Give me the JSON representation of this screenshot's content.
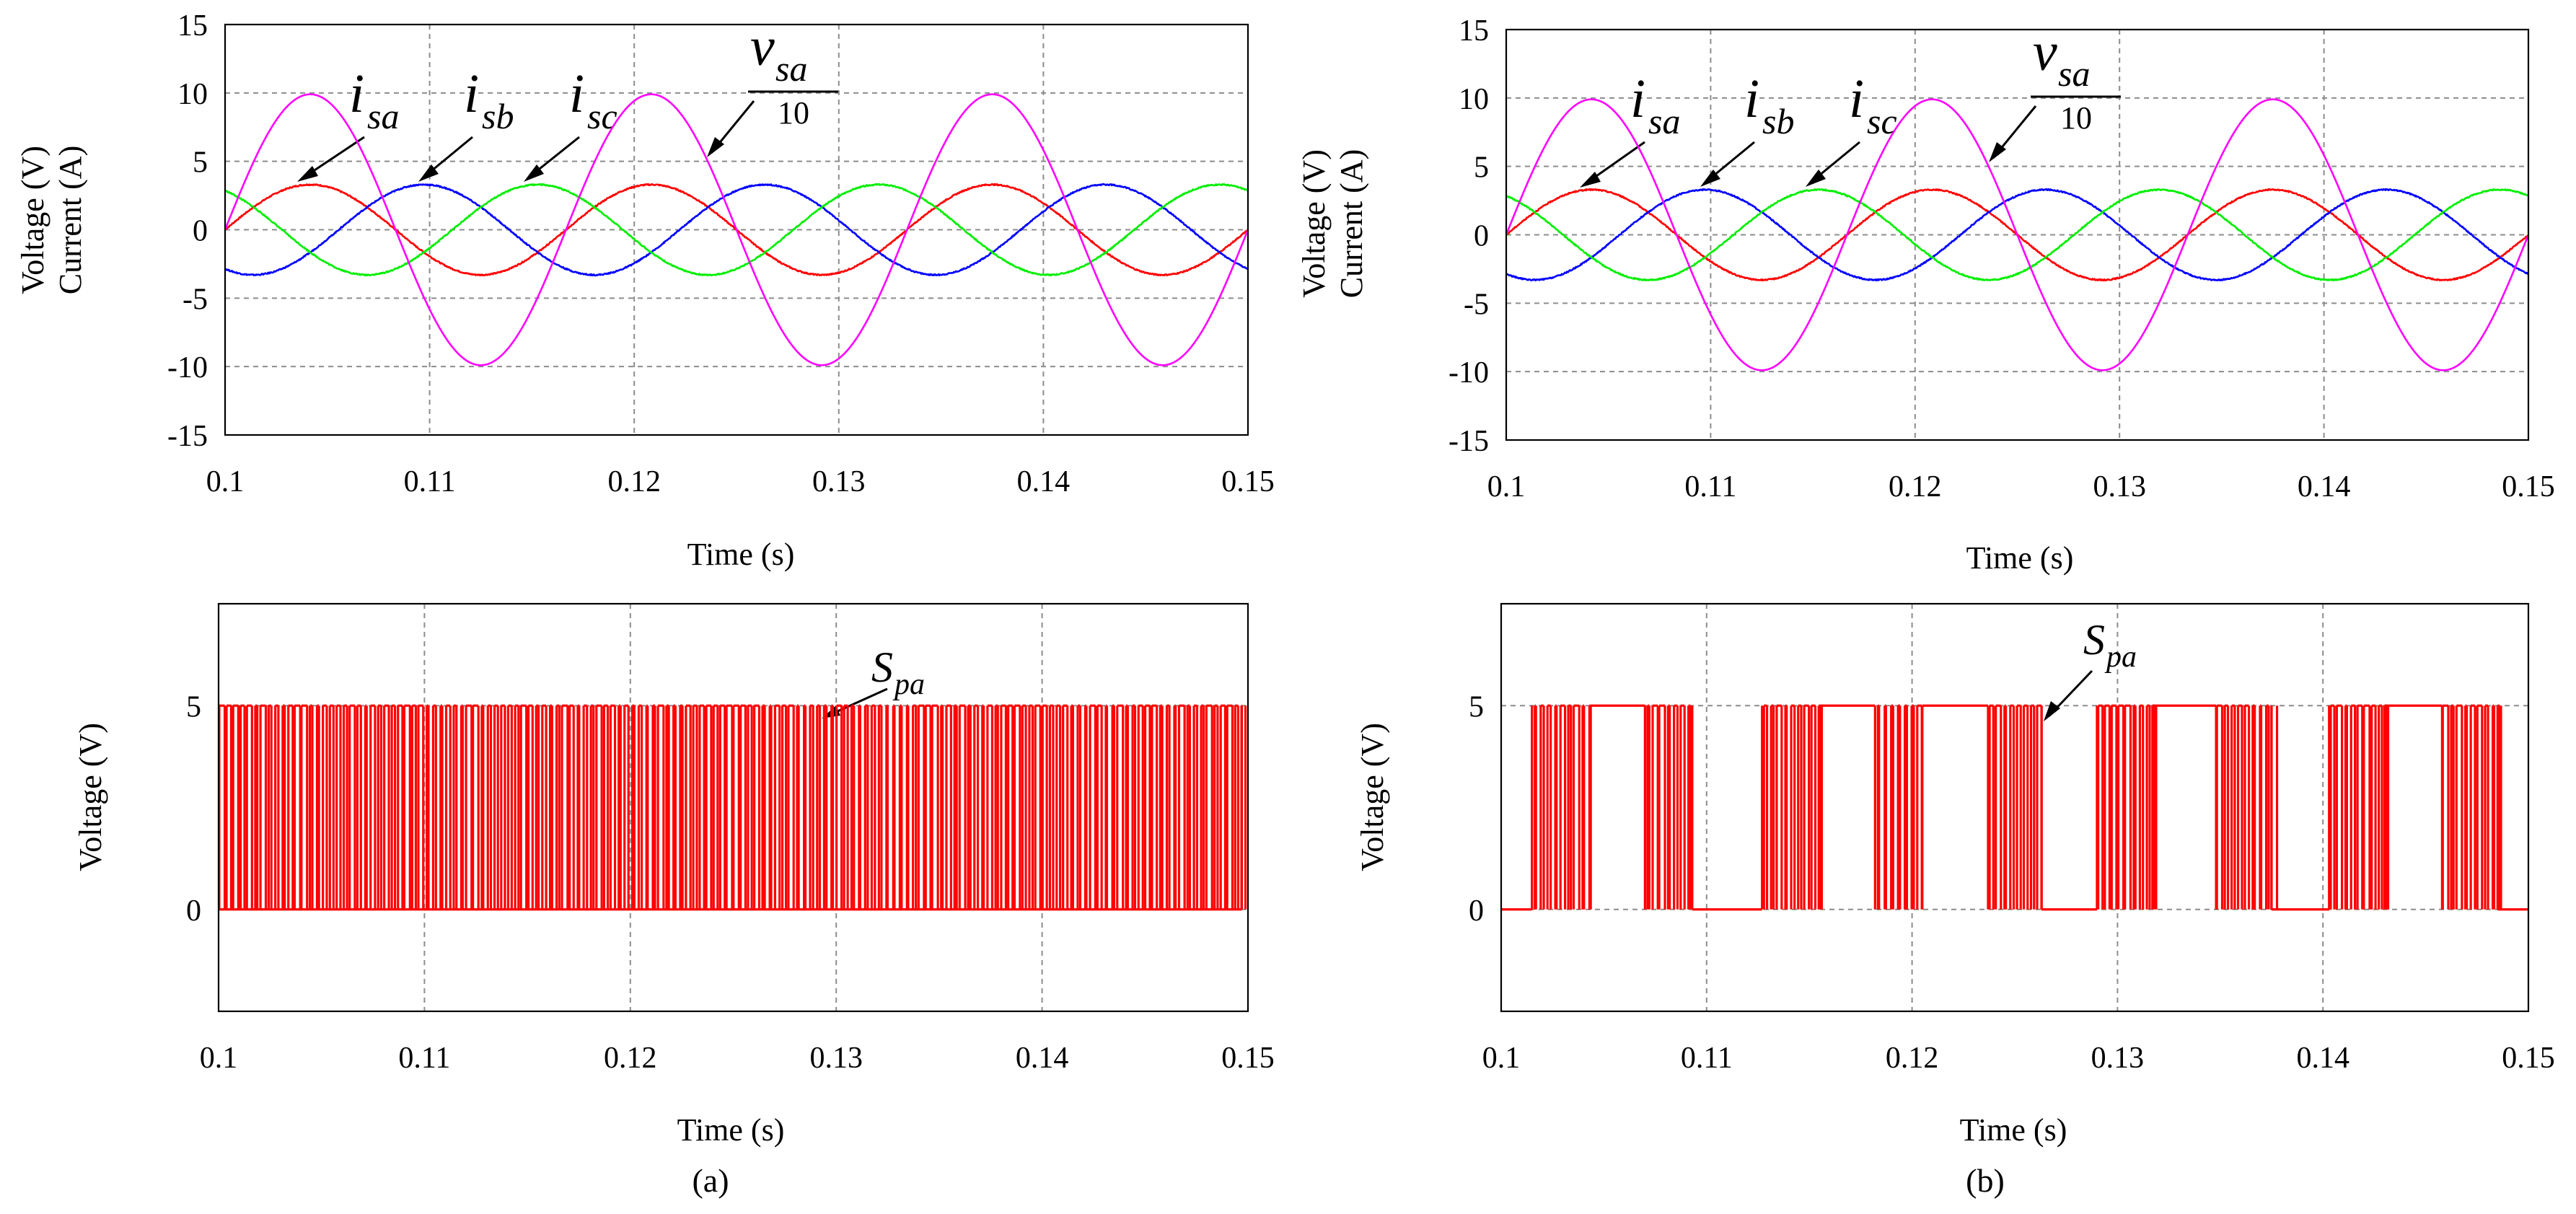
{
  "colors": {
    "isa": "#ff0000",
    "isb": "#0000ff",
    "isc": "#00ee00",
    "vsa": "#ff00ff",
    "pwm": "#ff0000"
  },
  "panels": [
    {
      "label": "(a)"
    },
    {
      "label": "(b)"
    }
  ],
  "annotations": {
    "isa": {
      "main": "i",
      "sub": "sa"
    },
    "isb": {
      "main": "i",
      "sub": "sb"
    },
    "isc": {
      "main": "i",
      "sub": "sc"
    },
    "vsa": {
      "main": "v",
      "sub": "sa",
      "den": "10"
    },
    "spa": {
      "main": "S",
      "sub": "pa"
    }
  },
  "chart_data": [
    {
      "id": "a-top",
      "type": "line",
      "xlabel": "Time (s)",
      "ylabel_lines": [
        "Voltage (V)",
        "Current (A)"
      ],
      "xlim": [
        0.1,
        0.15
      ],
      "ylim": [
        -15,
        15
      ],
      "xticks": [
        0.1,
        0.11,
        0.12,
        0.13,
        0.14,
        0.15
      ],
      "xtick_labels": [
        "0.1",
        "0.11",
        "0.12",
        "0.13",
        "0.14",
        "0.15"
      ],
      "yticks": [
        -15,
        -10,
        -5,
        0,
        5,
        10,
        15
      ],
      "ytick_labels": [
        "-15",
        "-10",
        "-5",
        "0",
        "5",
        "10",
        "15"
      ],
      "grid": true,
      "series": [
        {
          "key": "isa",
          "amplitude": 3.3,
          "frequency_hz": 60,
          "phase_deg": 0,
          "peak_time": 0.1042,
          "zero_up_time": 0.1
        },
        {
          "key": "isb",
          "amplitude": 3.3,
          "frequency_hz": 60,
          "phase_deg": -120,
          "peak_time": 0.1097
        },
        {
          "key": "isc",
          "amplitude": 3.3,
          "frequency_hz": 60,
          "phase_deg": 120,
          "peak_time": 0.1153
        },
        {
          "key": "vsa",
          "amplitude": 9.9,
          "frequency_hz": 60,
          "phase_deg": 0,
          "peak_time": 0.1042
        }
      ]
    },
    {
      "id": "a-bottom",
      "type": "line",
      "xlabel": "Time (s)",
      "ylabel": "Voltage (V)",
      "xlim": [
        0.1,
        0.15
      ],
      "ylim": [
        -2.5,
        7.5
      ],
      "xticks": [
        0.1,
        0.11,
        0.12,
        0.13,
        0.14,
        0.15
      ],
      "xtick_labels": [
        "0.1",
        "0.11",
        "0.12",
        "0.13",
        "0.14",
        "0.15"
      ],
      "yticks": [
        0,
        5
      ],
      "ytick_labels": [
        "0",
        "5"
      ],
      "grid": true,
      "series": [
        {
          "key": "spa",
          "levels": [
            0,
            5
          ],
          "switching": "continuous",
          "signal_span": [
            0.1,
            0.1497
          ],
          "pulse_period_s": 0.000333
        }
      ]
    },
    {
      "id": "b-top",
      "type": "line",
      "xlabel": "Time (s)",
      "ylabel_lines": [
        "Voltage (V)",
        "Current (A)"
      ],
      "xlim": [
        0.1,
        0.15
      ],
      "ylim": [
        -15,
        15
      ],
      "xticks": [
        0.1,
        0.11,
        0.12,
        0.13,
        0.14,
        0.15
      ],
      "xtick_labels": [
        "0.1",
        "0.11",
        "0.12",
        "0.13",
        "0.14",
        "0.15"
      ],
      "yticks": [
        -15,
        -10,
        -5,
        0,
        5,
        10,
        15
      ],
      "ytick_labels": [
        "-15",
        "-10",
        "-5",
        "0",
        "5",
        "10",
        "15"
      ],
      "grid": true,
      "series": [
        {
          "key": "isa",
          "amplitude": 3.3,
          "frequency_hz": 60,
          "phase_deg": 0,
          "peak_time": 0.1042,
          "zero_up_time": 0.1
        },
        {
          "key": "isb",
          "amplitude": 3.3,
          "frequency_hz": 60,
          "phase_deg": -120,
          "peak_time": 0.1097
        },
        {
          "key": "isc",
          "amplitude": 3.3,
          "frequency_hz": 60,
          "phase_deg": 120,
          "peak_time": 0.1153
        },
        {
          "key": "vsa",
          "amplitude": 9.9,
          "frequency_hz": 60,
          "phase_deg": 0,
          "peak_time": 0.1042
        }
      ]
    },
    {
      "id": "b-bottom",
      "type": "line",
      "xlabel": "Time (s)",
      "ylabel": "Voltage (V)",
      "xlim": [
        0.1,
        0.15
      ],
      "ylim": [
        -2.5,
        7.5
      ],
      "xticks": [
        0.1,
        0.11,
        0.12,
        0.13,
        0.14,
        0.15
      ],
      "xtick_labels": [
        "0.1",
        "0.11",
        "0.12",
        "0.13",
        "0.14",
        "0.15"
      ],
      "yticks": [
        0,
        5
      ],
      "ytick_labels": [
        "0",
        "5"
      ],
      "grid": true,
      "series": [
        {
          "key": "spa",
          "levels": [
            0,
            5
          ],
          "switching": "bursts",
          "signal_span": [
            0.1,
            0.1497
          ],
          "pulse_period_s": 0.000333,
          "switching_windows": [
            [
              0.1015,
              0.1043
            ],
            [
              0.107,
              0.1093
            ],
            [
              0.1127,
              0.1155
            ],
            [
              0.1182,
              0.1205
            ],
            [
              0.1237,
              0.1263
            ],
            [
              0.129,
              0.1317
            ],
            [
              0.1348,
              0.1375
            ],
            [
              0.1403,
              0.143
            ],
            [
              0.1458,
              0.1485
            ]
          ],
          "high_windows": [
            [
              0.1043,
              0.107
            ],
            [
              0.1155,
              0.1182
            ],
            [
              0.1205,
              0.1237
            ],
            [
              0.1317,
              0.1348
            ],
            [
              0.143,
              0.1458
            ]
          ],
          "low_windows": [
            [
              0.1,
              0.1015
            ],
            [
              0.1093,
              0.1127
            ],
            [
              0.1263,
              0.129
            ],
            [
              0.1375,
              0.1403
            ],
            [
              0.1485,
              0.15
            ]
          ]
        }
      ]
    }
  ]
}
